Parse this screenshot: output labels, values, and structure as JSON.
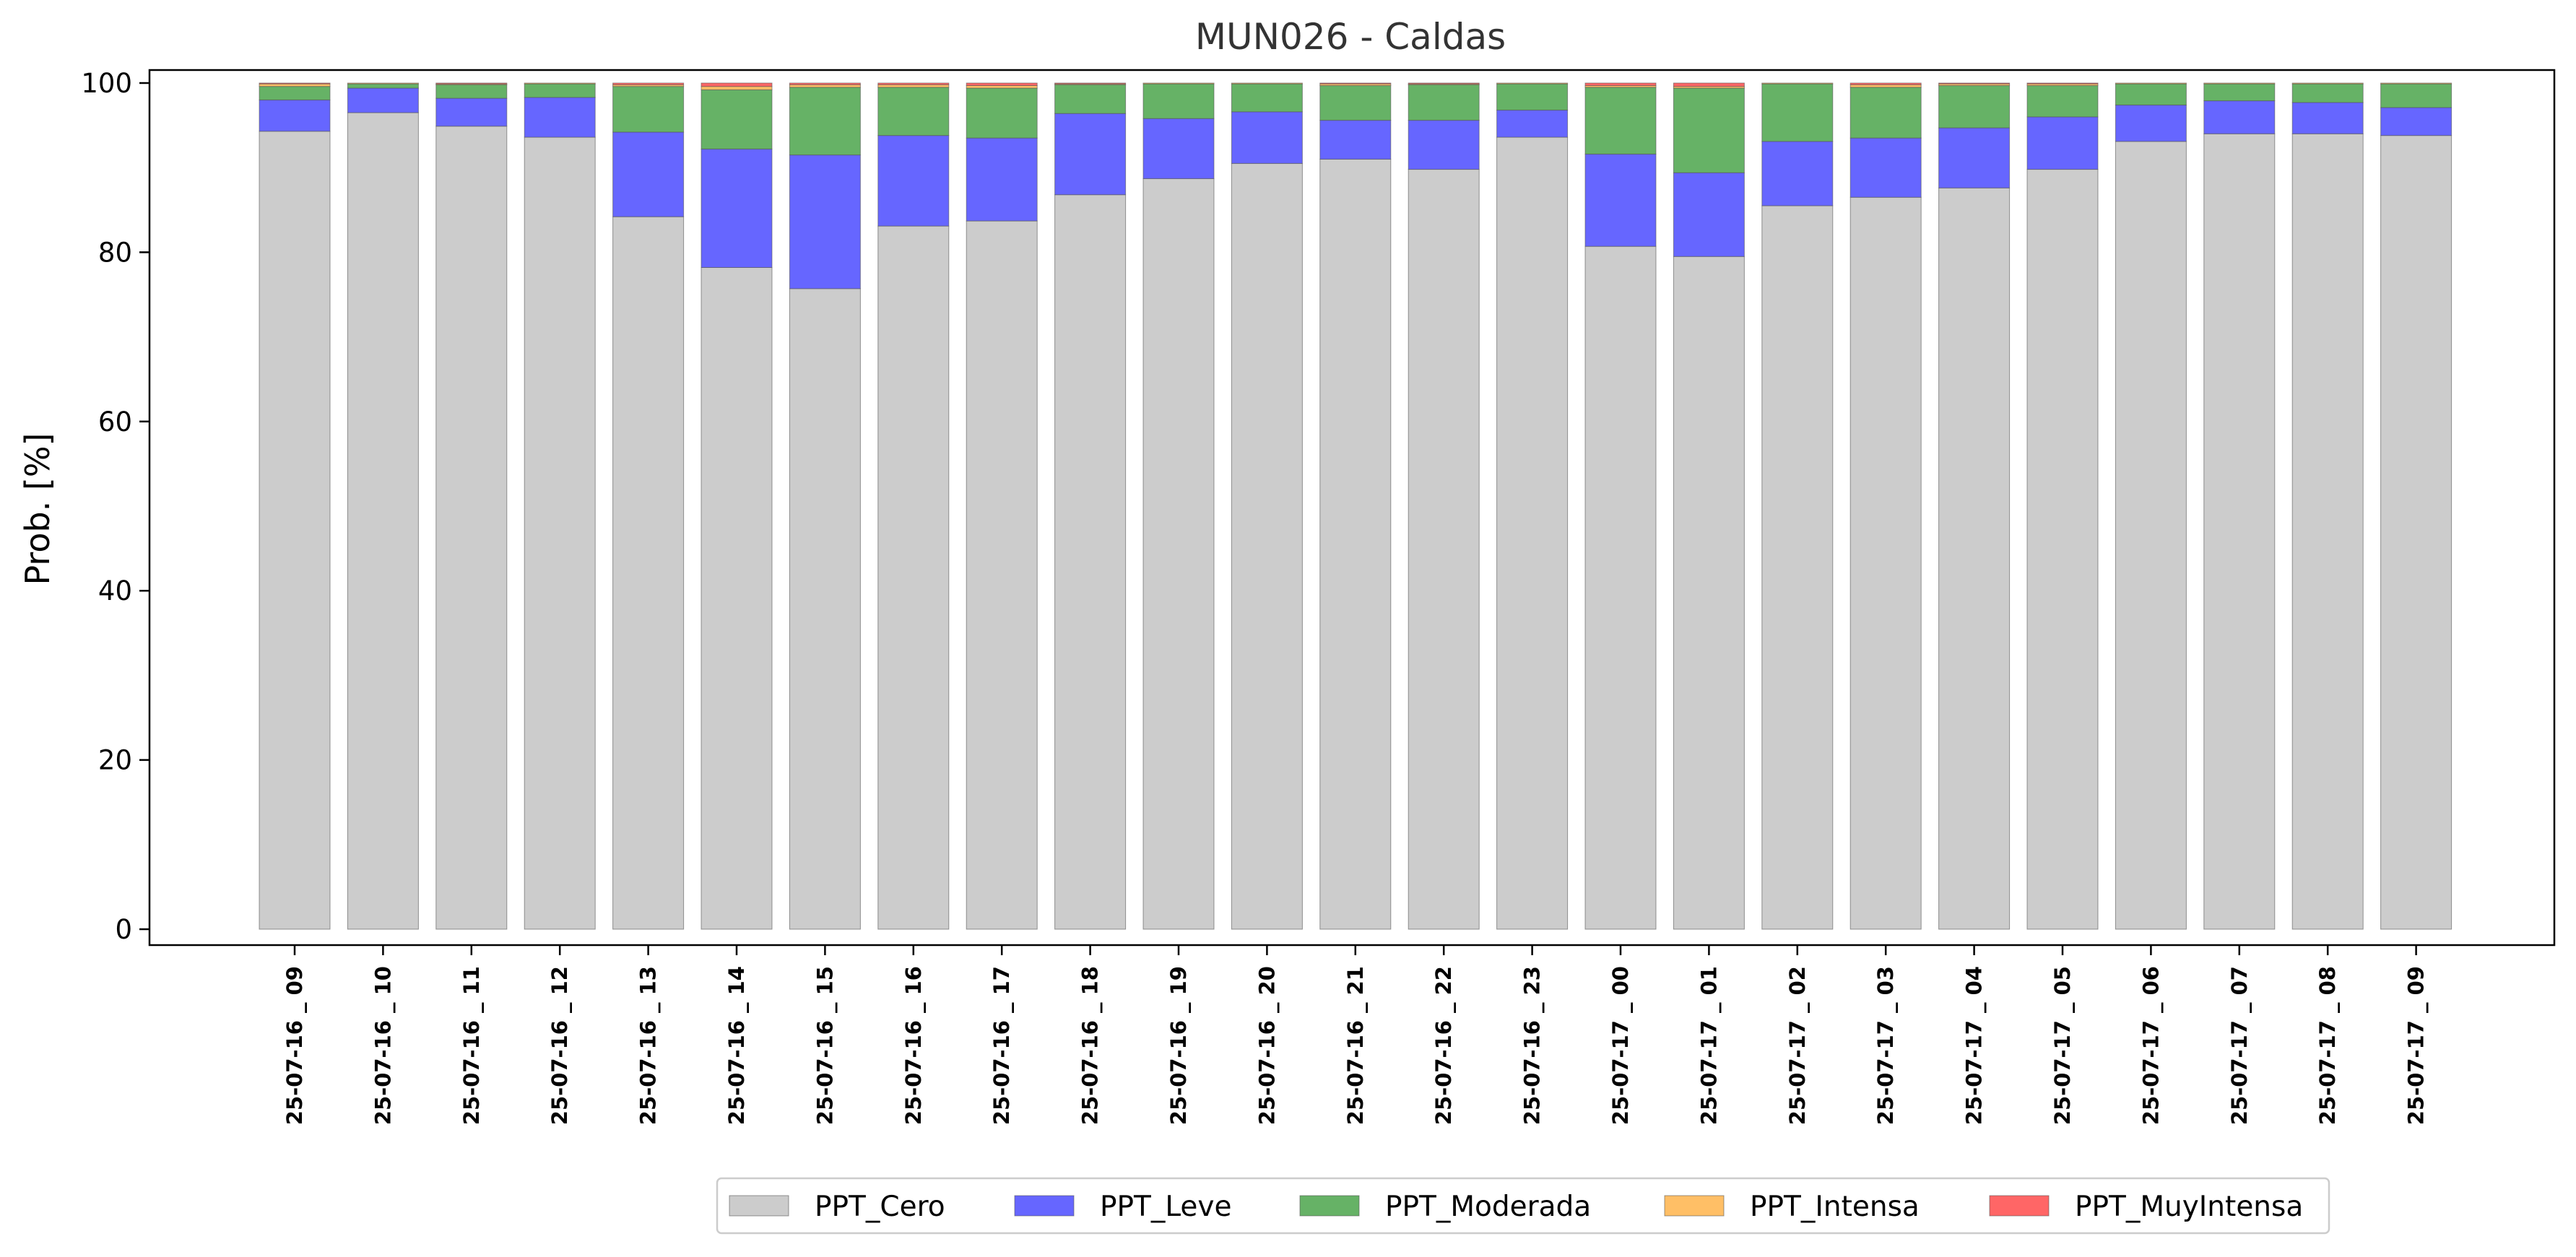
{
  "chart_data": {
    "type": "bar",
    "stacked": true,
    "title": "MUN026 - Caldas",
    "xlabel": "",
    "ylabel": "Prob. [%]",
    "ylim": [
      0,
      100
    ],
    "yticks": [
      0,
      20,
      40,
      60,
      80,
      100
    ],
    "grid": false,
    "legend_position": "bottom-center",
    "categories": [
      "25-07-16 _ 09",
      "25-07-16 _ 10",
      "25-07-16 _ 11",
      "25-07-16 _ 12",
      "25-07-16 _ 13",
      "25-07-16 _ 14",
      "25-07-16 _ 15",
      "25-07-16 _ 16",
      "25-07-16 _ 17",
      "25-07-16 _ 18",
      "25-07-16 _ 19",
      "25-07-16 _ 20",
      "25-07-16 _ 21",
      "25-07-16 _ 22",
      "25-07-16 _ 23",
      "25-07-17 _ 00",
      "25-07-17 _ 01",
      "25-07-17 _ 02",
      "25-07-17 _ 03",
      "25-07-17 _ 04",
      "25-07-17 _ 05",
      "25-07-17 _ 06",
      "25-07-17 _ 07",
      "25-07-17 _ 08",
      "25-07-17 _ 09"
    ],
    "series": [
      {
        "name": "PPT_Cero",
        "color": "#cccccc",
        "values": [
          94.3,
          96.5,
          94.9,
          93.6,
          84.2,
          78.2,
          75.7,
          83.1,
          83.7,
          86.8,
          88.7,
          90.5,
          91.0,
          89.8,
          93.6,
          80.7,
          79.5,
          85.5,
          86.5,
          87.6,
          89.8,
          93.1,
          94.0,
          94.0,
          93.8
        ]
      },
      {
        "name": "PPT_Leve",
        "color": "#6666ff",
        "values": [
          3.7,
          2.9,
          3.3,
          4.7,
          10.0,
          14.0,
          15.8,
          10.7,
          9.8,
          9.6,
          7.1,
          6.1,
          4.6,
          5.8,
          3.2,
          10.9,
          9.9,
          7.6,
          7.0,
          7.1,
          6.2,
          4.3,
          3.9,
          3.7,
          3.3
        ]
      },
      {
        "name": "PPT_Moderada",
        "color": "#66b266",
        "values": [
          1.6,
          0.5,
          1.6,
          1.6,
          5.4,
          7.0,
          8.0,
          5.7,
          5.9,
          3.4,
          4.1,
          3.3,
          4.1,
          4.2,
          3.1,
          7.9,
          10.0,
          6.8,
          6.0,
          5.0,
          3.7,
          2.5,
          2.0,
          2.2,
          2.8
        ]
      },
      {
        "name": "PPT_Intensa",
        "color": "#ffbf66",
        "values": [
          0.3,
          0.1,
          0.1,
          0.1,
          0.2,
          0.4,
          0.3,
          0.3,
          0.3,
          0.1,
          0.1,
          0.1,
          0.2,
          0.1,
          0.1,
          0.2,
          0.2,
          0.1,
          0.3,
          0.2,
          0.2,
          0.1,
          0.1,
          0.1,
          0.1
        ]
      },
      {
        "name": "PPT_MuyIntensa",
        "color": "#ff6666",
        "values": [
          0.1,
          0.0,
          0.1,
          0.0,
          0.2,
          0.4,
          0.2,
          0.2,
          0.3,
          0.1,
          0.0,
          0.0,
          0.1,
          0.1,
          0.0,
          0.3,
          0.4,
          0.0,
          0.2,
          0.1,
          0.1,
          0.0,
          0.0,
          0.0,
          0.0
        ]
      }
    ]
  }
}
